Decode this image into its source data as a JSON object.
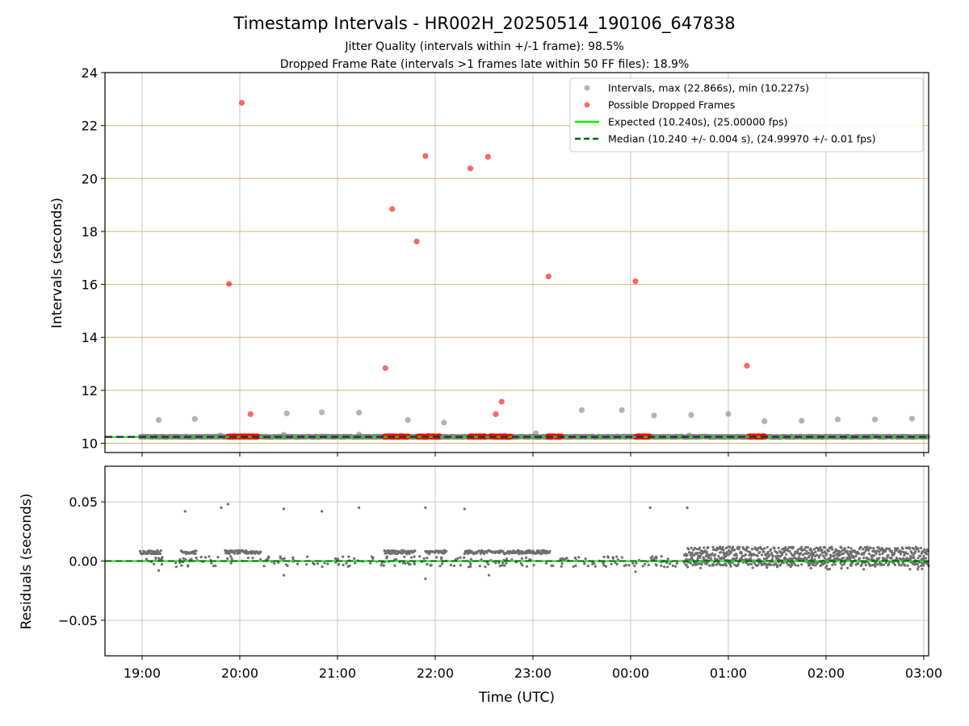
{
  "title": "Timestamp Intervals - HR002H_20250514_190106_647838",
  "subtitle_1": "Jitter Quality (intervals within +/-1 frame): 98.5%",
  "subtitle_2": "Dropped Frame Rate (intervals >1 frames late within 50 FF files): 18.9%",
  "colors": {
    "intervals": "#808080",
    "dropped": "#ff0000",
    "expected": "#00ee00",
    "median": "#006400",
    "grid": "#c8c8c8",
    "hline": "#d4b872",
    "residuals": "#6e6e6e"
  },
  "chart_data": [
    {
      "type": "scatter",
      "ylabel": "Intervals (seconds)",
      "ylim": [
        9.65,
        24
      ],
      "yticks": [
        10,
        12,
        14,
        16,
        18,
        20,
        22,
        24
      ],
      "xlim_hours": [
        18.62,
        27.05
      ],
      "grid": true,
      "legend_position": "top-right",
      "legend": [
        "Intervals, max (22.866s), min (10.227s)",
        "Possible Dropped Frames",
        "Expected (10.240s), (25.00000 fps)",
        "Median (10.240 +/- 0.004 s), (24.99970 +/- 0.01 fps)"
      ],
      "expected_value": 10.24,
      "median_value": 10.24,
      "series": [
        {
          "name": "Intervals, max (22.866s), min (10.227s)",
          "points": [
            [
              19.17,
              10.88
            ],
            [
              19.54,
              10.92
            ],
            [
              19.8,
              10.3
            ],
            [
              20.45,
              10.32
            ],
            [
              20.48,
              11.13
            ],
            [
              20.84,
              11.17
            ],
            [
              21.22,
              11.16
            ],
            [
              21.22,
              10.33
            ],
            [
              21.72,
              10.88
            ],
            [
              22.09,
              10.78
            ],
            [
              23.03,
              10.38
            ],
            [
              23.5,
              11.25
            ],
            [
              23.91,
              11.25
            ],
            [
              24.24,
              11.05
            ],
            [
              24.6,
              10.3
            ],
            [
              24.62,
              11.07
            ],
            [
              25.0,
              11.11
            ],
            [
              25.37,
              10.83
            ],
            [
              25.75,
              10.85
            ],
            [
              26.12,
              10.9
            ],
            [
              26.5,
              10.9
            ],
            [
              26.88,
              10.93
            ]
          ],
          "bands": [
            [
              18.98,
              27.05,
              10.23,
              10.26
            ]
          ]
        },
        {
          "name": "Possible Dropped Frames",
          "points": [
            [
              19.89,
              16.02
            ],
            [
              20.02,
              22.86
            ],
            [
              20.11,
              11.1
            ],
            [
              21.49,
              12.84
            ],
            [
              21.56,
              18.85
            ],
            [
              21.81,
              17.62
            ],
            [
              21.9,
              20.85
            ],
            [
              22.36,
              20.38
            ],
            [
              22.54,
              20.82
            ],
            [
              22.62,
              11.1
            ],
            [
              22.68,
              11.57
            ],
            [
              23.16,
              16.3
            ],
            [
              24.05,
              16.12
            ],
            [
              25.19,
              12.93
            ]
          ],
          "bands": [
            [
              19.88,
              20.19,
              10.24,
              10.27
            ],
            [
              21.48,
              21.73,
              10.24,
              10.27
            ],
            [
              21.82,
              22.05,
              10.24,
              10.27
            ],
            [
              22.35,
              22.52,
              10.24,
              10.27
            ],
            [
              22.56,
              22.78,
              10.24,
              10.27
            ],
            [
              23.15,
              23.3,
              10.24,
              10.27
            ],
            [
              24.05,
              24.2,
              10.24,
              10.27
            ],
            [
              25.21,
              25.38,
              10.24,
              10.27
            ]
          ]
        }
      ]
    },
    {
      "type": "scatter",
      "xlabel": "Time (UTC)",
      "ylabel": "Residuals (seconds)",
      "ylim": [
        -0.08,
        0.08
      ],
      "yticks": [
        0.05,
        0.0,
        -0.05
      ],
      "ytick_labels": [
        "0.05",
        "0.00",
        "−0.05"
      ],
      "xticks_hours": [
        19,
        20,
        21,
        22,
        23,
        24,
        25,
        26,
        27
      ],
      "xtick_labels": [
        "19:00",
        "20:00",
        "21:00",
        "22:00",
        "23:00",
        "00:00",
        "01:00",
        "02:00",
        "03:00"
      ],
      "grid": true,
      "series": [
        {
          "name": "Residuals",
          "points": [
            [
              19.44,
              0.042
            ],
            [
              19.81,
              0.045
            ],
            [
              19.88,
              0.048
            ],
            [
              20.45,
              0.044
            ],
            [
              20.84,
              0.042
            ],
            [
              21.22,
              0.045
            ],
            [
              21.9,
              0.045
            ],
            [
              22.3,
              0.044
            ],
            [
              24.2,
              0.045
            ],
            [
              24.58,
              0.045
            ],
            [
              20.45,
              -0.012
            ],
            [
              21.9,
              -0.015
            ],
            [
              22.55,
              -0.012
            ],
            [
              19.17,
              -0.008
            ],
            [
              24.05,
              -0.009
            ]
          ],
          "segments": [
            [
              18.98,
              19.2,
              0.006,
              0.009
            ],
            [
              19.4,
              19.56,
              0.006,
              0.009
            ],
            [
              19.85,
              20.22,
              0.006,
              0.009
            ],
            [
              21.48,
              21.8,
              0.006,
              0.009
            ],
            [
              21.9,
              22.12,
              0.006,
              0.009
            ],
            [
              22.3,
              23.18,
              0.006,
              0.009
            ],
            [
              24.55,
              27.05,
              0.004,
              0.012
            ],
            [
              24.55,
              27.05,
              -0.004,
              0.003
            ]
          ],
          "scatter_ranges": [
            [
              19.0,
              24.5,
              -0.005,
              0.004
            ],
            [
              24.55,
              27.05,
              -0.007,
              0.012
            ]
          ]
        }
      ]
    }
  ]
}
